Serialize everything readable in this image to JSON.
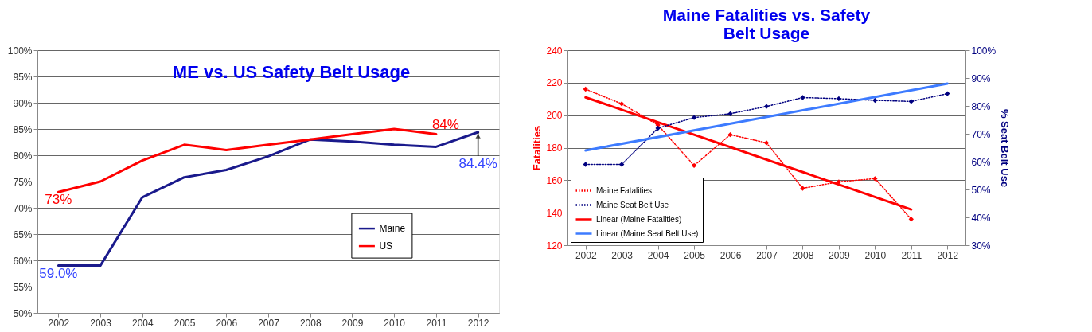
{
  "chart_data": [
    {
      "type": "line",
      "title": "ME vs. US Safety Belt Usage",
      "x": [
        2002,
        2003,
        2004,
        2005,
        2006,
        2007,
        2008,
        2009,
        2010,
        2011,
        2012
      ],
      "xlim": [
        2001.5,
        2012.5
      ],
      "xticks": [
        2002,
        2003,
        2004,
        2005,
        2006,
        2007,
        2008,
        2009,
        2010,
        2011,
        2012
      ],
      "series": [
        {
          "name": "Maine",
          "color": "#1a1a8c",
          "values": [
            59.0,
            59.0,
            72,
            75.8,
            77.2,
            79.8,
            83.0,
            82.6,
            82.0,
            81.6,
            84.4
          ]
        },
        {
          "name": "US",
          "color": "#ff0000",
          "values": [
            73,
            75,
            79,
            82,
            81,
            82,
            83,
            84,
            85,
            84,
            null
          ]
        }
      ],
      "ylim": [
        50,
        100
      ],
      "yticks": [
        {
          "value": 50,
          "label": "50%"
        },
        {
          "value": 55,
          "label": "55%"
        },
        {
          "value": 60,
          "label": "60%"
        },
        {
          "value": 65,
          "label": "65%"
        },
        {
          "value": 70,
          "label": "70%"
        },
        {
          "value": 75,
          "label": "75%"
        },
        {
          "value": 80,
          "label": "80%"
        },
        {
          "value": 85,
          "label": "85%"
        },
        {
          "value": 90,
          "label": "90%"
        },
        {
          "value": 95,
          "label": "95%"
        },
        {
          "value": 100,
          "label": "100%"
        }
      ],
      "annotations": [
        {
          "text": "73%",
          "x": 2002,
          "y": 73
        },
        {
          "text": "59.0%",
          "x": 2002,
          "y": 59.0
        },
        {
          "text": "84%",
          "x": 2011,
          "y": 84
        },
        {
          "text": "84.4%",
          "x": 2012,
          "y": 84.4
        }
      ],
      "grid": "y",
      "legend": "right"
    },
    {
      "type": "line",
      "title": "Maine Fatalities vs. Safety Belt Usage",
      "x": [
        2002,
        2003,
        2004,
        2005,
        2006,
        2007,
        2008,
        2009,
        2010,
        2011,
        2012
      ],
      "xlim": [
        2001.5,
        2012.5
      ],
      "xticks": [
        2002,
        2003,
        2004,
        2005,
        2006,
        2007,
        2008,
        2009,
        2010,
        2011,
        2012
      ],
      "ylabel": "Fatalities",
      "y2label": "% Seat Belt Use",
      "series": [
        {
          "name": "Maine Fatalities",
          "color": "#ff0000",
          "line_style": "dotted",
          "marker": "diamond",
          "values": [
            216,
            207,
            194,
            169,
            188,
            183,
            155,
            159,
            161,
            136,
            null
          ]
        },
        {
          "name": "Maine Seat Belt Use",
          "color": "#000080",
          "line_style": "dotted",
          "marker": "diamond",
          "axis": "y2",
          "values": [
            59.0,
            59.0,
            72,
            75.8,
            77.2,
            79.8,
            83.0,
            82.6,
            82.0,
            81.6,
            84.4
          ]
        },
        {
          "name": "Linear (Maine Fatalities)",
          "color": "#ff0000",
          "line_style": "solid",
          "x": [
            2002,
            2011
          ],
          "values": [
            211,
            142
          ]
        },
        {
          "name": "Linear (Maine Seat Belt Use)",
          "color": "#3d7bff",
          "line_style": "solid",
          "axis": "y2",
          "x": [
            2002,
            2012
          ],
          "values": [
            64,
            88
          ]
        }
      ],
      "ylim": [
        120,
        240
      ],
      "yticks": [
        120,
        140,
        160,
        180,
        200,
        220,
        240
      ],
      "y2lim": [
        30,
        100
      ],
      "y2ticks": [
        {
          "value": 30,
          "label": "30%"
        },
        {
          "value": 40,
          "label": "40%"
        },
        {
          "value": 50,
          "label": "50%"
        },
        {
          "value": 60,
          "label": "60%"
        },
        {
          "value": 70,
          "label": "70%"
        },
        {
          "value": 80,
          "label": "80%"
        },
        {
          "value": 90,
          "label": "90%"
        },
        {
          "value": 100,
          "label": "100%"
        }
      ],
      "grid": "y",
      "legend": "bottom left"
    }
  ]
}
